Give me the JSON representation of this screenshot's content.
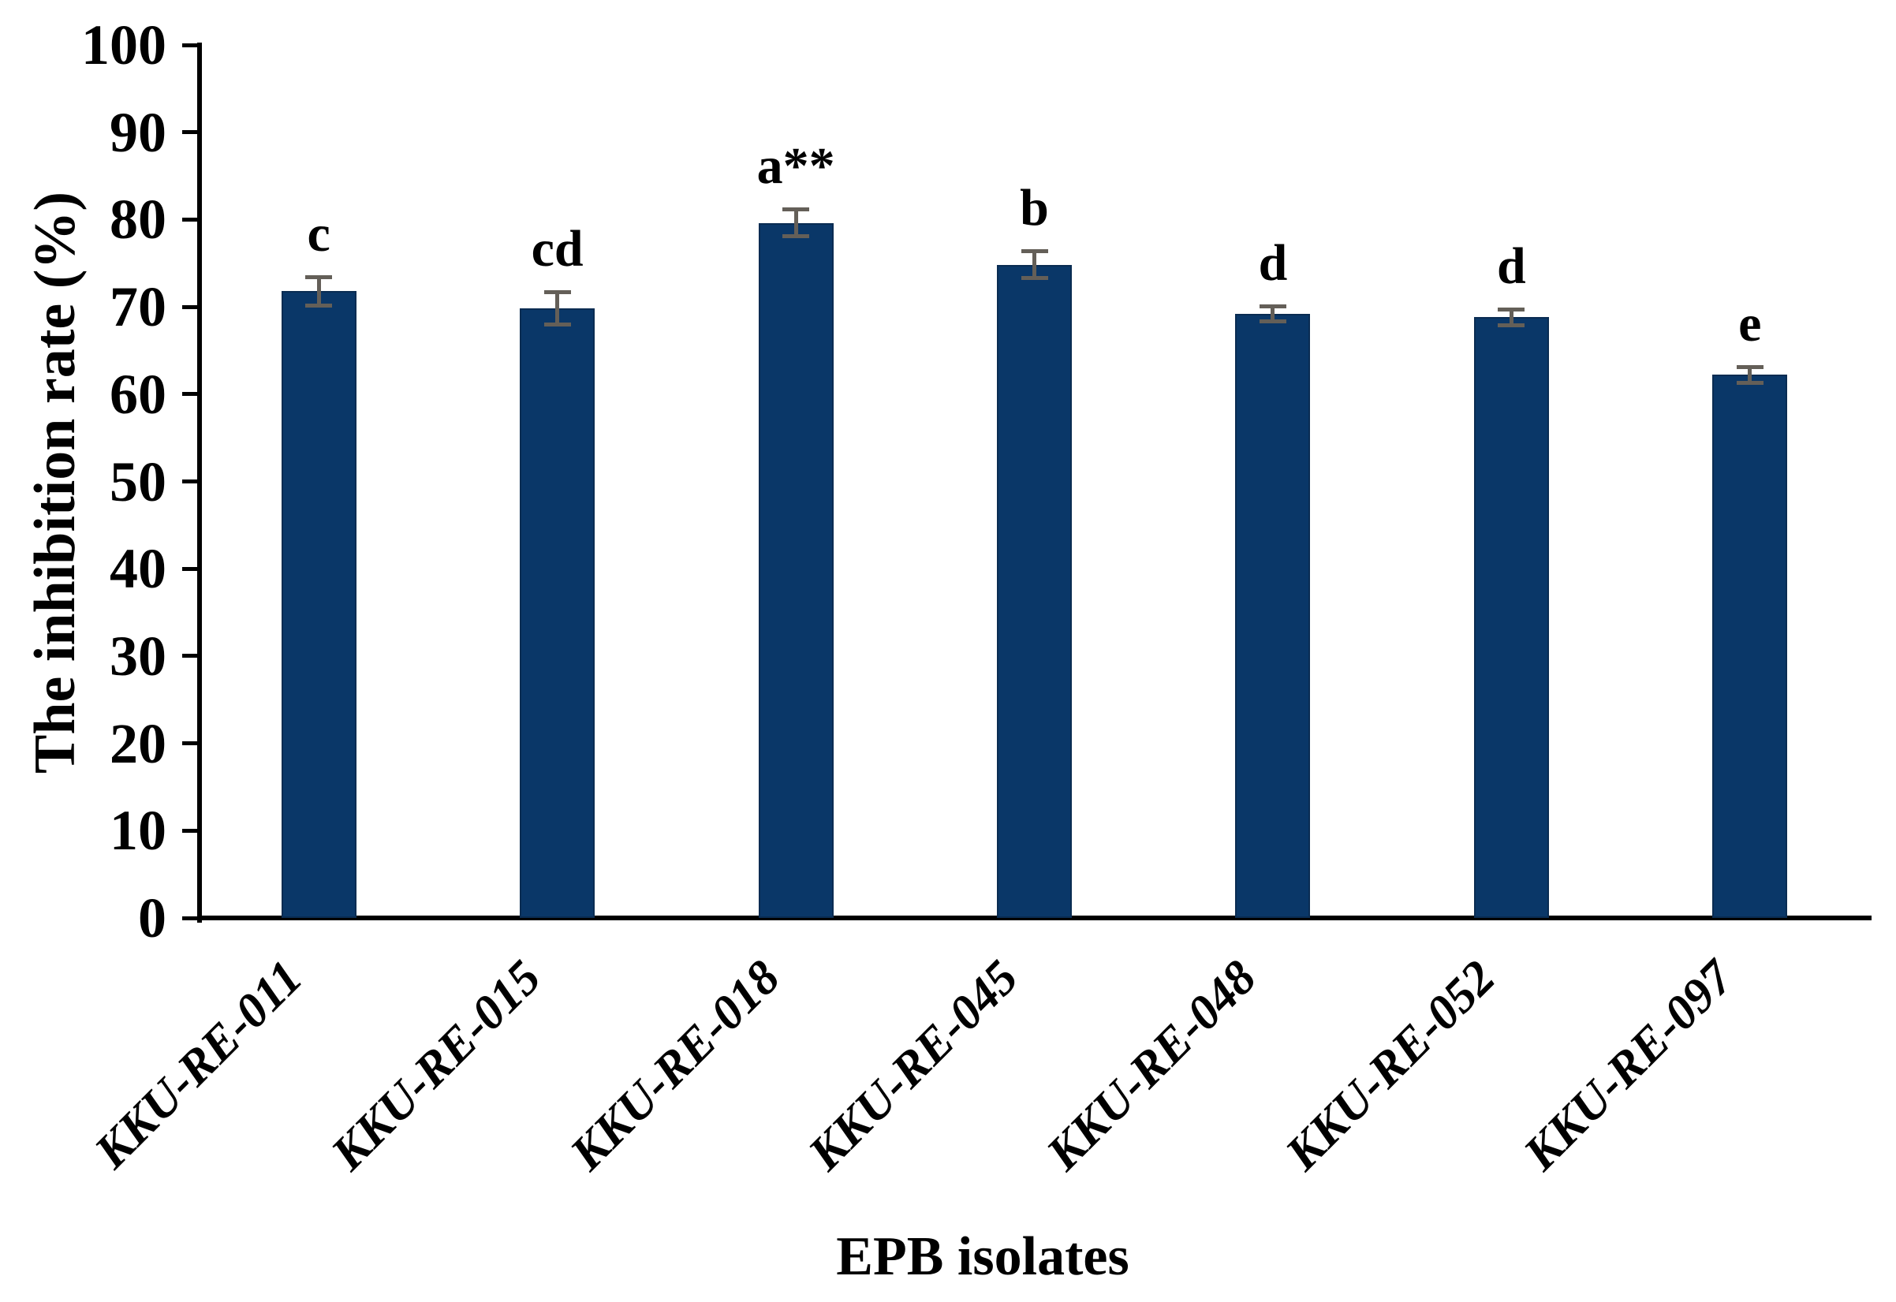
{
  "chart_data": {
    "type": "bar",
    "title": "",
    "xlabel": "EPB isolates",
    "ylabel": "The inhibition rate (%)",
    "categories": [
      "KKU-RE-011",
      "KKU-RE-015",
      "KKU-RE-018",
      "KKU-RE-045",
      "KKU-RE-048",
      "KKU-RE-052",
      "KKU-RE-097"
    ],
    "values": [
      71.8,
      69.8,
      79.6,
      74.8,
      69.2,
      68.8,
      62.2
    ],
    "error_bars": [
      1.5,
      1.7,
      1.4,
      1.4,
      0.7,
      0.8,
      0.8
    ],
    "significance_letters": [
      "c",
      "cd",
      "a**",
      "b",
      "d",
      "d",
      "e"
    ],
    "yticks": [
      0,
      10,
      20,
      30,
      40,
      50,
      60,
      70,
      80,
      90,
      100
    ],
    "ylim": [
      0,
      100
    ],
    "grid": false,
    "legend": "none",
    "colors": {
      "bar": "#0a3768",
      "bar_border": "#0a2c52",
      "error_bar": "#645f58",
      "axis": "#000000",
      "background": "#ffffff"
    }
  }
}
